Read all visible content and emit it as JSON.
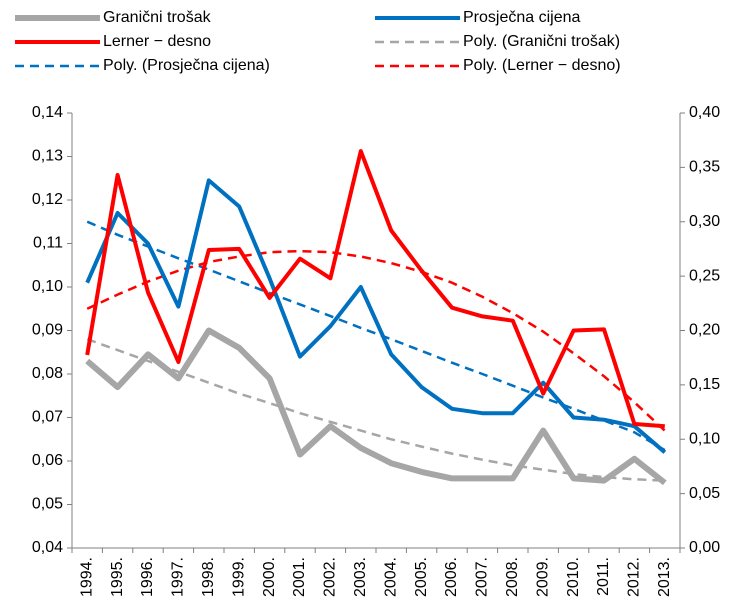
{
  "chart_data": {
    "type": "line",
    "categories": [
      "1994.",
      "1995.",
      "1996.",
      "1997.",
      "1998.",
      "1999.",
      "2000.",
      "2001.",
      "2002.",
      "2003.",
      "2004.",
      "2005.",
      "2006.",
      "2007.",
      "2008.",
      "2009.",
      "2010.",
      "2011.",
      "2012.",
      "2013."
    ],
    "series": [
      {
        "name": "Granični trošak",
        "color": "#a6a6a6",
        "dash": false,
        "width": 6,
        "axis": "y",
        "values": [
          0.083,
          0.077,
          0.0845,
          0.079,
          0.09,
          0.086,
          0.079,
          0.0615,
          0.068,
          0.063,
          0.0595,
          0.0575,
          0.056,
          0.056,
          0.056,
          0.067,
          0.056,
          0.0555,
          0.0605,
          0.055
        ]
      },
      {
        "name": "Prosječna cijena",
        "color": "#0070c0",
        "dash": false,
        "width": 4,
        "axis": "y",
        "values": [
          0.101,
          0.117,
          0.11,
          0.0955,
          0.1245,
          0.1185,
          0.102,
          0.084,
          0.091,
          0.1,
          0.0845,
          0.077,
          0.072,
          0.071,
          0.071,
          0.078,
          0.07,
          0.0695,
          0.068,
          0.062
        ]
      },
      {
        "name": "Lerner − desno",
        "color": "#ff0000",
        "dash": false,
        "width": 4,
        "axis": "y2",
        "values": [
          0.1775,
          0.343,
          0.235,
          0.171,
          0.274,
          0.275,
          0.23,
          0.266,
          0.248,
          0.365,
          0.292,
          0.255,
          0.221,
          0.213,
          0.209,
          0.142,
          0.2,
          0.201,
          0.114,
          0.112
        ]
      },
      {
        "name": "Poly. (Granični trošak)",
        "color": "#a6a6a6",
        "dash": true,
        "width": 2.5,
        "axis": "y",
        "values": [
          0.088,
          0.0855,
          0.083,
          0.0805,
          0.078,
          0.0755,
          0.0733,
          0.071,
          0.069,
          0.067,
          0.065,
          0.0633,
          0.0617,
          0.0603,
          0.059,
          0.058,
          0.057,
          0.0563,
          0.0558,
          0.0555
        ]
      },
      {
        "name": "Poly. (Prosječna cijena)",
        "color": "#0070c0",
        "dash": true,
        "width": 2.5,
        "axis": "y",
        "values": [
          0.115,
          0.112,
          0.1093,
          0.1066,
          0.104,
          0.1013,
          0.0986,
          0.096,
          0.0933,
          0.0906,
          0.088,
          0.0853,
          0.0826,
          0.08,
          0.0773,
          0.0746,
          0.072,
          0.0693,
          0.0666,
          0.0625
        ]
      },
      {
        "name": "Poly. (Lerner − desno)",
        "color": "#ff0000",
        "dash": true,
        "width": 2.5,
        "axis": "y2",
        "values": [
          0.22,
          0.233,
          0.245,
          0.255,
          0.263,
          0.268,
          0.272,
          0.273,
          0.272,
          0.268,
          0.262,
          0.254,
          0.244,
          0.231,
          0.216,
          0.199,
          0.179,
          0.158,
          0.134,
          0.108
        ]
      }
    ],
    "ylim": [
      0.04,
      0.14
    ],
    "yticks": [
      {
        "value": 0.04,
        "label": "0,04"
      },
      {
        "value": 0.05,
        "label": "0,05"
      },
      {
        "value": 0.06,
        "label": "0,06"
      },
      {
        "value": 0.07,
        "label": "0,07"
      },
      {
        "value": 0.08,
        "label": "0,08"
      },
      {
        "value": 0.09,
        "label": "0,09"
      },
      {
        "value": 0.1,
        "label": "0,10"
      },
      {
        "value": 0.11,
        "label": "0,11"
      },
      {
        "value": 0.12,
        "label": "0,12"
      },
      {
        "value": 0.13,
        "label": "0,13"
      },
      {
        "value": 0.14,
        "label": "0,14"
      }
    ],
    "y2lim": [
      0,
      0.4
    ],
    "y2ticks": [
      {
        "value": 0,
        "label": "0,00"
      },
      {
        "value": 0.05,
        "label": "0,05"
      },
      {
        "value": 0.1,
        "label": "0,10"
      },
      {
        "value": 0.15,
        "label": "0,15"
      },
      {
        "value": 0.2,
        "label": "0,20"
      },
      {
        "value": 0.25,
        "label": "0,25"
      },
      {
        "value": 0.3,
        "label": "0,30"
      },
      {
        "value": 0.35,
        "label": "0,35"
      },
      {
        "value": 0.4,
        "label": "0,40"
      }
    ],
    "legend": "top",
    "grid": false
  }
}
